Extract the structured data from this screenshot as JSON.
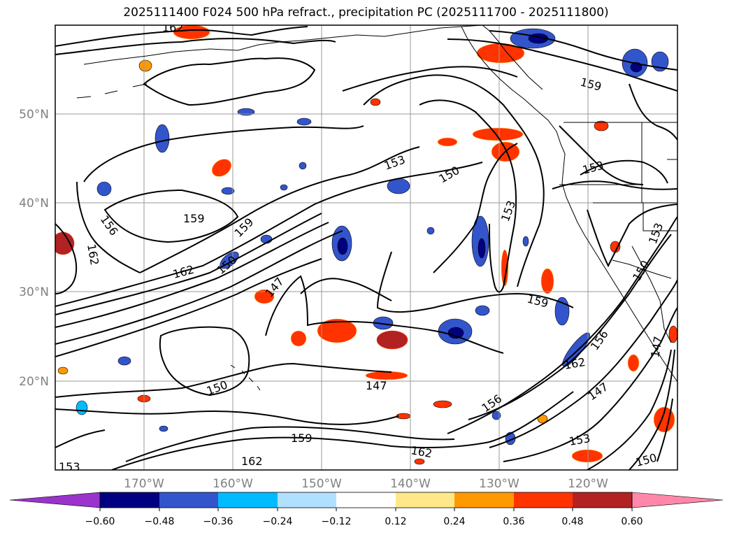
{
  "map": {
    "title": "2025111400 F024 500 hPa refract., precipitation PC (2025111700 - 2025111800)",
    "lat_ticks": [
      "50°N",
      "40°N",
      "30°N",
      "20°N"
    ],
    "lon_ticks": [
      "170°W",
      "160°W",
      "150°W",
      "140°W",
      "130°W",
      "120°W"
    ],
    "contour_labels": [
      "162",
      "159",
      "153",
      "150",
      "153",
      "156",
      "162",
      "159",
      "150",
      "162",
      "147",
      "159",
      "153",
      "150",
      "147",
      "159",
      "156",
      "162",
      "147",
      "153",
      "150",
      "162",
      "159",
      "153",
      "150",
      "156",
      "147",
      "162",
      "153"
    ],
    "colorbar": {
      "ticks": [
        "−0.60",
        "−0.48",
        "−0.36",
        "−0.24",
        "−0.12",
        "0.12",
        "0.24",
        "0.36",
        "0.48",
        "0.60"
      ],
      "colors": [
        "#9933cc",
        "#000080",
        "#3355cc",
        "#00bbff",
        "#b0e0ff",
        "#ffffff",
        "#ffe88a",
        "#ff9900",
        "#ff3300",
        "#b22222",
        "#ff88aa"
      ]
    },
    "colors": {
      "frame": "#000000",
      "grid": "#999999",
      "contour": "#000000",
      "coast": "#000000",
      "tick_text": "#808080"
    }
  }
}
